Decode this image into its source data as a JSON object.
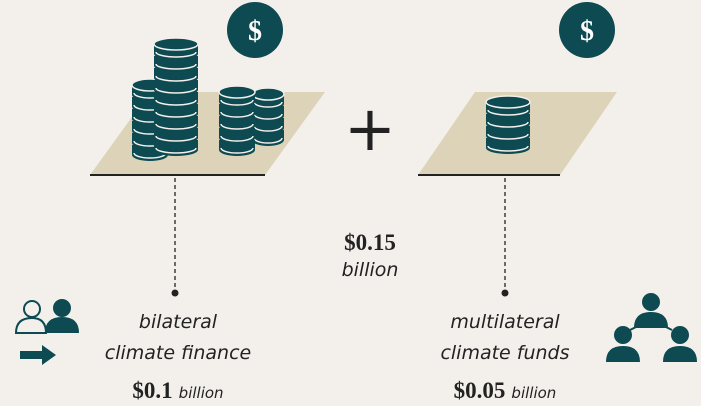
{
  "total": {
    "amount": "$0.15",
    "unit": "billion"
  },
  "operator": "+",
  "items": [
    {
      "icon": "$",
      "label_lines": [
        "bilateral",
        "climate finance"
      ],
      "amount": "$0.1",
      "unit": "billion"
    },
    {
      "icon": "$",
      "label_lines": [
        "multilateral",
        "climate funds"
      ],
      "amount": "$0.05",
      "unit": "billion"
    }
  ]
}
